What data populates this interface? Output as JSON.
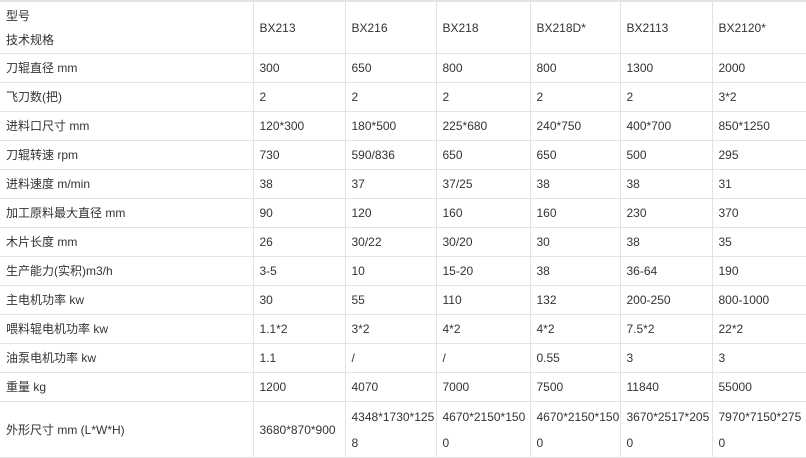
{
  "table": {
    "header": {
      "label_line1": "型号",
      "label_line2": "技术规格",
      "models": [
        "BX213",
        "BX216",
        "BX218",
        "BX218D*",
        "BX2113",
        "BX2120*"
      ]
    },
    "rows": [
      {
        "label": "刀辊直径 mm",
        "values": [
          "300",
          "650",
          "800",
          "800",
          "1300",
          "2000"
        ]
      },
      {
        "label": "飞刀数(把)",
        "values": [
          "2",
          "2",
          "2",
          "2",
          "2",
          "3*2"
        ]
      },
      {
        "label": "进料口尺寸 mm",
        "values": [
          "120*300",
          "180*500",
          "225*680",
          "240*750",
          "400*700",
          "850*1250"
        ]
      },
      {
        "label": "刀辊转速 rpm",
        "values": [
          "730",
          "590/836",
          "650",
          "650",
          "500",
          "295"
        ]
      },
      {
        "label": "进料速度 m/min",
        "values": [
          "38",
          "37",
          "37/25",
          "38",
          "38",
          "31"
        ]
      },
      {
        "label": "加工原料最大直径 mm",
        "values": [
          "90",
          "120",
          "160",
          "160",
          "230",
          "370"
        ]
      },
      {
        "label": "木片长度 mm",
        "values": [
          "26",
          "30/22",
          "30/20",
          "30",
          "38",
          "35"
        ]
      },
      {
        "label": "生产能力(实积)m3/h",
        "values": [
          "3-5",
          "10",
          "15-20",
          "38",
          "36-64",
          "190"
        ]
      },
      {
        "label": "主电机功率 kw",
        "values": [
          "30",
          "55",
          "110",
          "132",
          "200-250",
          "800-1000"
        ]
      },
      {
        "label": "喂料辊电机功率 kw",
        "values": [
          "1.1*2",
          "3*2",
          "4*2",
          "4*2",
          "7.5*2",
          "22*2"
        ]
      },
      {
        "label": "油泵电机功率 kw",
        "values": [
          "1.1",
          "/",
          "/",
          "0.55",
          "3",
          "3"
        ]
      },
      {
        "label": "重量 kg",
        "values": [
          "1200",
          "4070",
          "7000",
          "7500",
          "11840",
          "55000"
        ]
      },
      {
        "label": "外形尺寸 mm (L*W*H)",
        "values": [
          "3680*870*900",
          "4348*1730*1258",
          "4670*2150*1500",
          "4670*2150*1500",
          "3670*2517*2050",
          "7970*7150*2750"
        ]
      }
    ]
  }
}
